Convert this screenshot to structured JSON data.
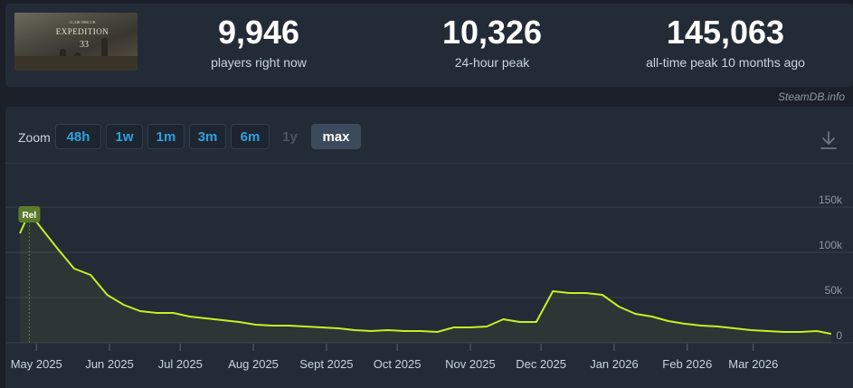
{
  "game": {
    "capsule_small": "CLAIR OBSCUR",
    "capsule_title": "EXPEDITION",
    "capsule_number": "33"
  },
  "stats": [
    {
      "value": "9,946",
      "label": "players right now"
    },
    {
      "value": "10,326",
      "label": "24-hour peak"
    },
    {
      "value": "145,063",
      "label": "all-time peak 10 months ago"
    }
  ],
  "watermark": "SteamDB.info",
  "zoom": {
    "label": "Zoom",
    "buttons": [
      {
        "label": "48h",
        "state": "enabled"
      },
      {
        "label": "1w",
        "state": "enabled"
      },
      {
        "label": "1m",
        "state": "enabled"
      },
      {
        "label": "3m",
        "state": "enabled"
      },
      {
        "label": "6m",
        "state": "enabled"
      },
      {
        "label": "1y",
        "state": "disabled"
      },
      {
        "label": "max",
        "state": "active"
      }
    ]
  },
  "icons": {
    "download": "download-icon"
  },
  "colors": {
    "line": "#c6f024",
    "accent": "#2fa0e0",
    "marker": "#5c7a2c"
  },
  "chart_data": {
    "type": "line",
    "marker_label": "Rel",
    "x_tick_labels": [
      "May 2025",
      "Jun 2025",
      "Jul 2025",
      "Aug 2025",
      "Sept 2025",
      "Oct 2025",
      "Nov 2025",
      "Dec 2025",
      "Jan 2026",
      "Feb 2026",
      "Mar 2026"
    ],
    "y_tick_labels": [
      "150k",
      "100k",
      "50k",
      "0"
    ],
    "ylim": [
      0,
      150000
    ],
    "x_range": [
      "2025-04-24",
      "2026-04-05"
    ],
    "grid": true,
    "series": [
      {
        "x": [
          "2025-04-24",
          "2025-04-28",
          "2025-05-03",
          "2025-05-10",
          "2025-05-17",
          "2025-05-24",
          "2025-05-31",
          "2025-06-07",
          "2025-06-14",
          "2025-06-21",
          "2025-06-28",
          "2025-07-05",
          "2025-07-12",
          "2025-07-19",
          "2025-07-26",
          "2025-08-02",
          "2025-08-09",
          "2025-08-16",
          "2025-08-23",
          "2025-08-30",
          "2025-09-06",
          "2025-09-13",
          "2025-09-20",
          "2025-09-27",
          "2025-10-04",
          "2025-10-11",
          "2025-10-18",
          "2025-10-25",
          "2025-11-01",
          "2025-11-08",
          "2025-11-15",
          "2025-11-22",
          "2025-11-29",
          "2025-12-06",
          "2025-12-13",
          "2025-12-20",
          "2025-12-27",
          "2026-01-03",
          "2026-01-10",
          "2026-01-17",
          "2026-01-24",
          "2026-01-31",
          "2026-02-07",
          "2026-02-14",
          "2026-02-21",
          "2026-02-28",
          "2026-03-07",
          "2026-03-14",
          "2026-03-21",
          "2026-03-28",
          "2026-04-03"
        ],
        "values": [
          121000,
          144000,
          127000,
          104000,
          82000,
          75000,
          53000,
          42000,
          35000,
          33000,
          33000,
          29000,
          27000,
          25000,
          23000,
          20000,
          19000,
          19000,
          18000,
          17000,
          16000,
          14000,
          13000,
          14000,
          13000,
          13000,
          12000,
          17000,
          17000,
          18000,
          26000,
          23000,
          23000,
          57000,
          55000,
          55000,
          53000,
          40000,
          32000,
          29000,
          24000,
          21000,
          19000,
          18000,
          16000,
          14000,
          13000,
          12000,
          12000,
          13000,
          9946
        ]
      }
    ]
  }
}
